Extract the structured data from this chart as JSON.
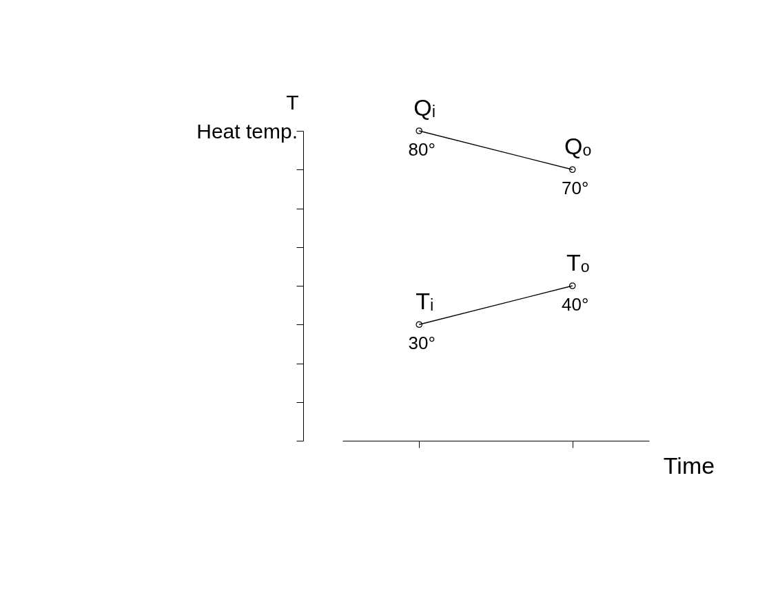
{
  "chart_data": {
    "type": "line",
    "ylabel": "T",
    "categories": [
      null,
      null
    ],
    "tick_labels": false,
    "grid": false,
    "marker": "circle",
    "series": [
      {
        "color": "#000000",
        "values": [
          80,
          70
        ],
        "value_labels": [
          "80°",
          "70°"
        ]
      },
      {
        "color": "#000000",
        "values": [
          30,
          40
        ],
        "value_labels": [
          "30°",
          "40°"
        ]
      }
    ],
    "annotations": [
      "Heat temp.",
      "Time",
      {
        "text": "Qᵢ",
        "y": 80
      },
      {
        "text": "Qₒ",
        "y": 70
      },
      {
        "text": "Tᵢ",
        "y": 30
      },
      {
        "text": "Tₒ",
        "y": 40
      }
    ]
  }
}
